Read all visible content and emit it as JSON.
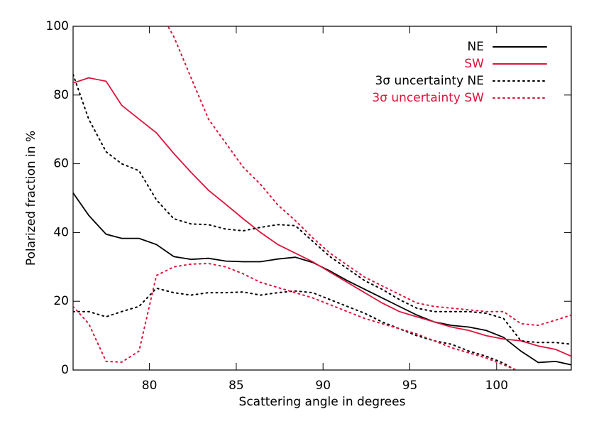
{
  "chart_data": {
    "type": "line",
    "xlabel": "Scattering angle in degrees",
    "ylabel": "Polarized fraction in %",
    "x": [
      75.6,
      76.5,
      77.5,
      78.4,
      79.4,
      80.4,
      81.4,
      82.4,
      83.4,
      84.4,
      85.4,
      86.4,
      87.4,
      88.4,
      89.4,
      90.4,
      91.4,
      92.4,
      93.4,
      94.4,
      95.4,
      96.4,
      97.4,
      98.4,
      99.4,
      100.4,
      101.4,
      102.4,
      103.4,
      104.3
    ],
    "series": [
      {
        "name": "NE",
        "color": "#000000",
        "dash": false,
        "values": [
          51.5,
          45,
          39.5,
          38.3,
          38.3,
          36.5,
          33,
          32.2,
          32.5,
          31.7,
          31.5,
          31.5,
          32.3,
          32.8,
          31.3,
          28.8,
          26,
          23.5,
          21,
          18.5,
          16,
          14,
          13,
          12.5,
          11.5,
          9.5,
          5.5,
          2.2,
          2.5,
          1.5
        ]
      },
      {
        "name": "SW",
        "color": "#dc143c",
        "dash": false,
        "values": [
          83.5,
          85,
          84,
          77,
          73,
          69,
          63,
          57.5,
          52.3,
          48.2,
          44,
          40,
          36.5,
          34,
          31.5,
          28.5,
          25.5,
          22.5,
          19.5,
          17,
          15.5,
          14,
          12.5,
          11.5,
          10,
          9,
          8.5,
          7,
          6,
          4
        ]
      },
      {
        "name": "3σ uncertainty NE",
        "color": "#000000",
        "dash": true,
        "lower": [
          17,
          17,
          15.5,
          17,
          18.5,
          23.8,
          22.5,
          21.8,
          22.5,
          22.5,
          22.7,
          21.8,
          22.5,
          23,
          22.5,
          20.5,
          18.5,
          16.5,
          14,
          12,
          10,
          8.5,
          7.5,
          5.5,
          4,
          2,
          -1,
          null,
          null,
          null
        ],
        "upper": [
          86,
          73,
          63.5,
          60,
          58,
          49.5,
          44,
          42.5,
          42.3,
          41,
          40.5,
          41.5,
          42.3,
          42,
          37.5,
          33,
          29.5,
          26,
          23.5,
          20.5,
          18,
          17,
          17,
          17,
          16.5,
          15,
          8.5,
          8,
          8,
          7.5
        ]
      },
      {
        "name": "3σ uncertainty SW",
        "color": "#dc143c",
        "dash": true,
        "lower": [
          18.5,
          13.5,
          2.5,
          2.3,
          5.5,
          27.5,
          30,
          30.8,
          31,
          30,
          28,
          25.5,
          24,
          22.5,
          21,
          19,
          17,
          15,
          13.5,
          12,
          10.5,
          8.5,
          6.5,
          5,
          3.5,
          1.5,
          -0.5,
          null,
          null,
          null
        ],
        "upper": [
          null,
          null,
          null,
          null,
          null,
          106,
          97,
          85,
          73,
          66,
          59,
          54,
          48,
          43.5,
          38.5,
          34,
          30.5,
          27,
          24.5,
          22,
          19.5,
          18.5,
          18,
          17.5,
          17,
          17,
          13.5,
          13,
          14.5,
          16
        ]
      }
    ],
    "xlim": [
      75.6,
      104.3
    ],
    "xticks": [
      80,
      85,
      90,
      95,
      100
    ],
    "ylim": [
      0,
      100
    ],
    "yticks": [
      0,
      20,
      40,
      60,
      80,
      100
    ],
    "legend": "upper right"
  }
}
